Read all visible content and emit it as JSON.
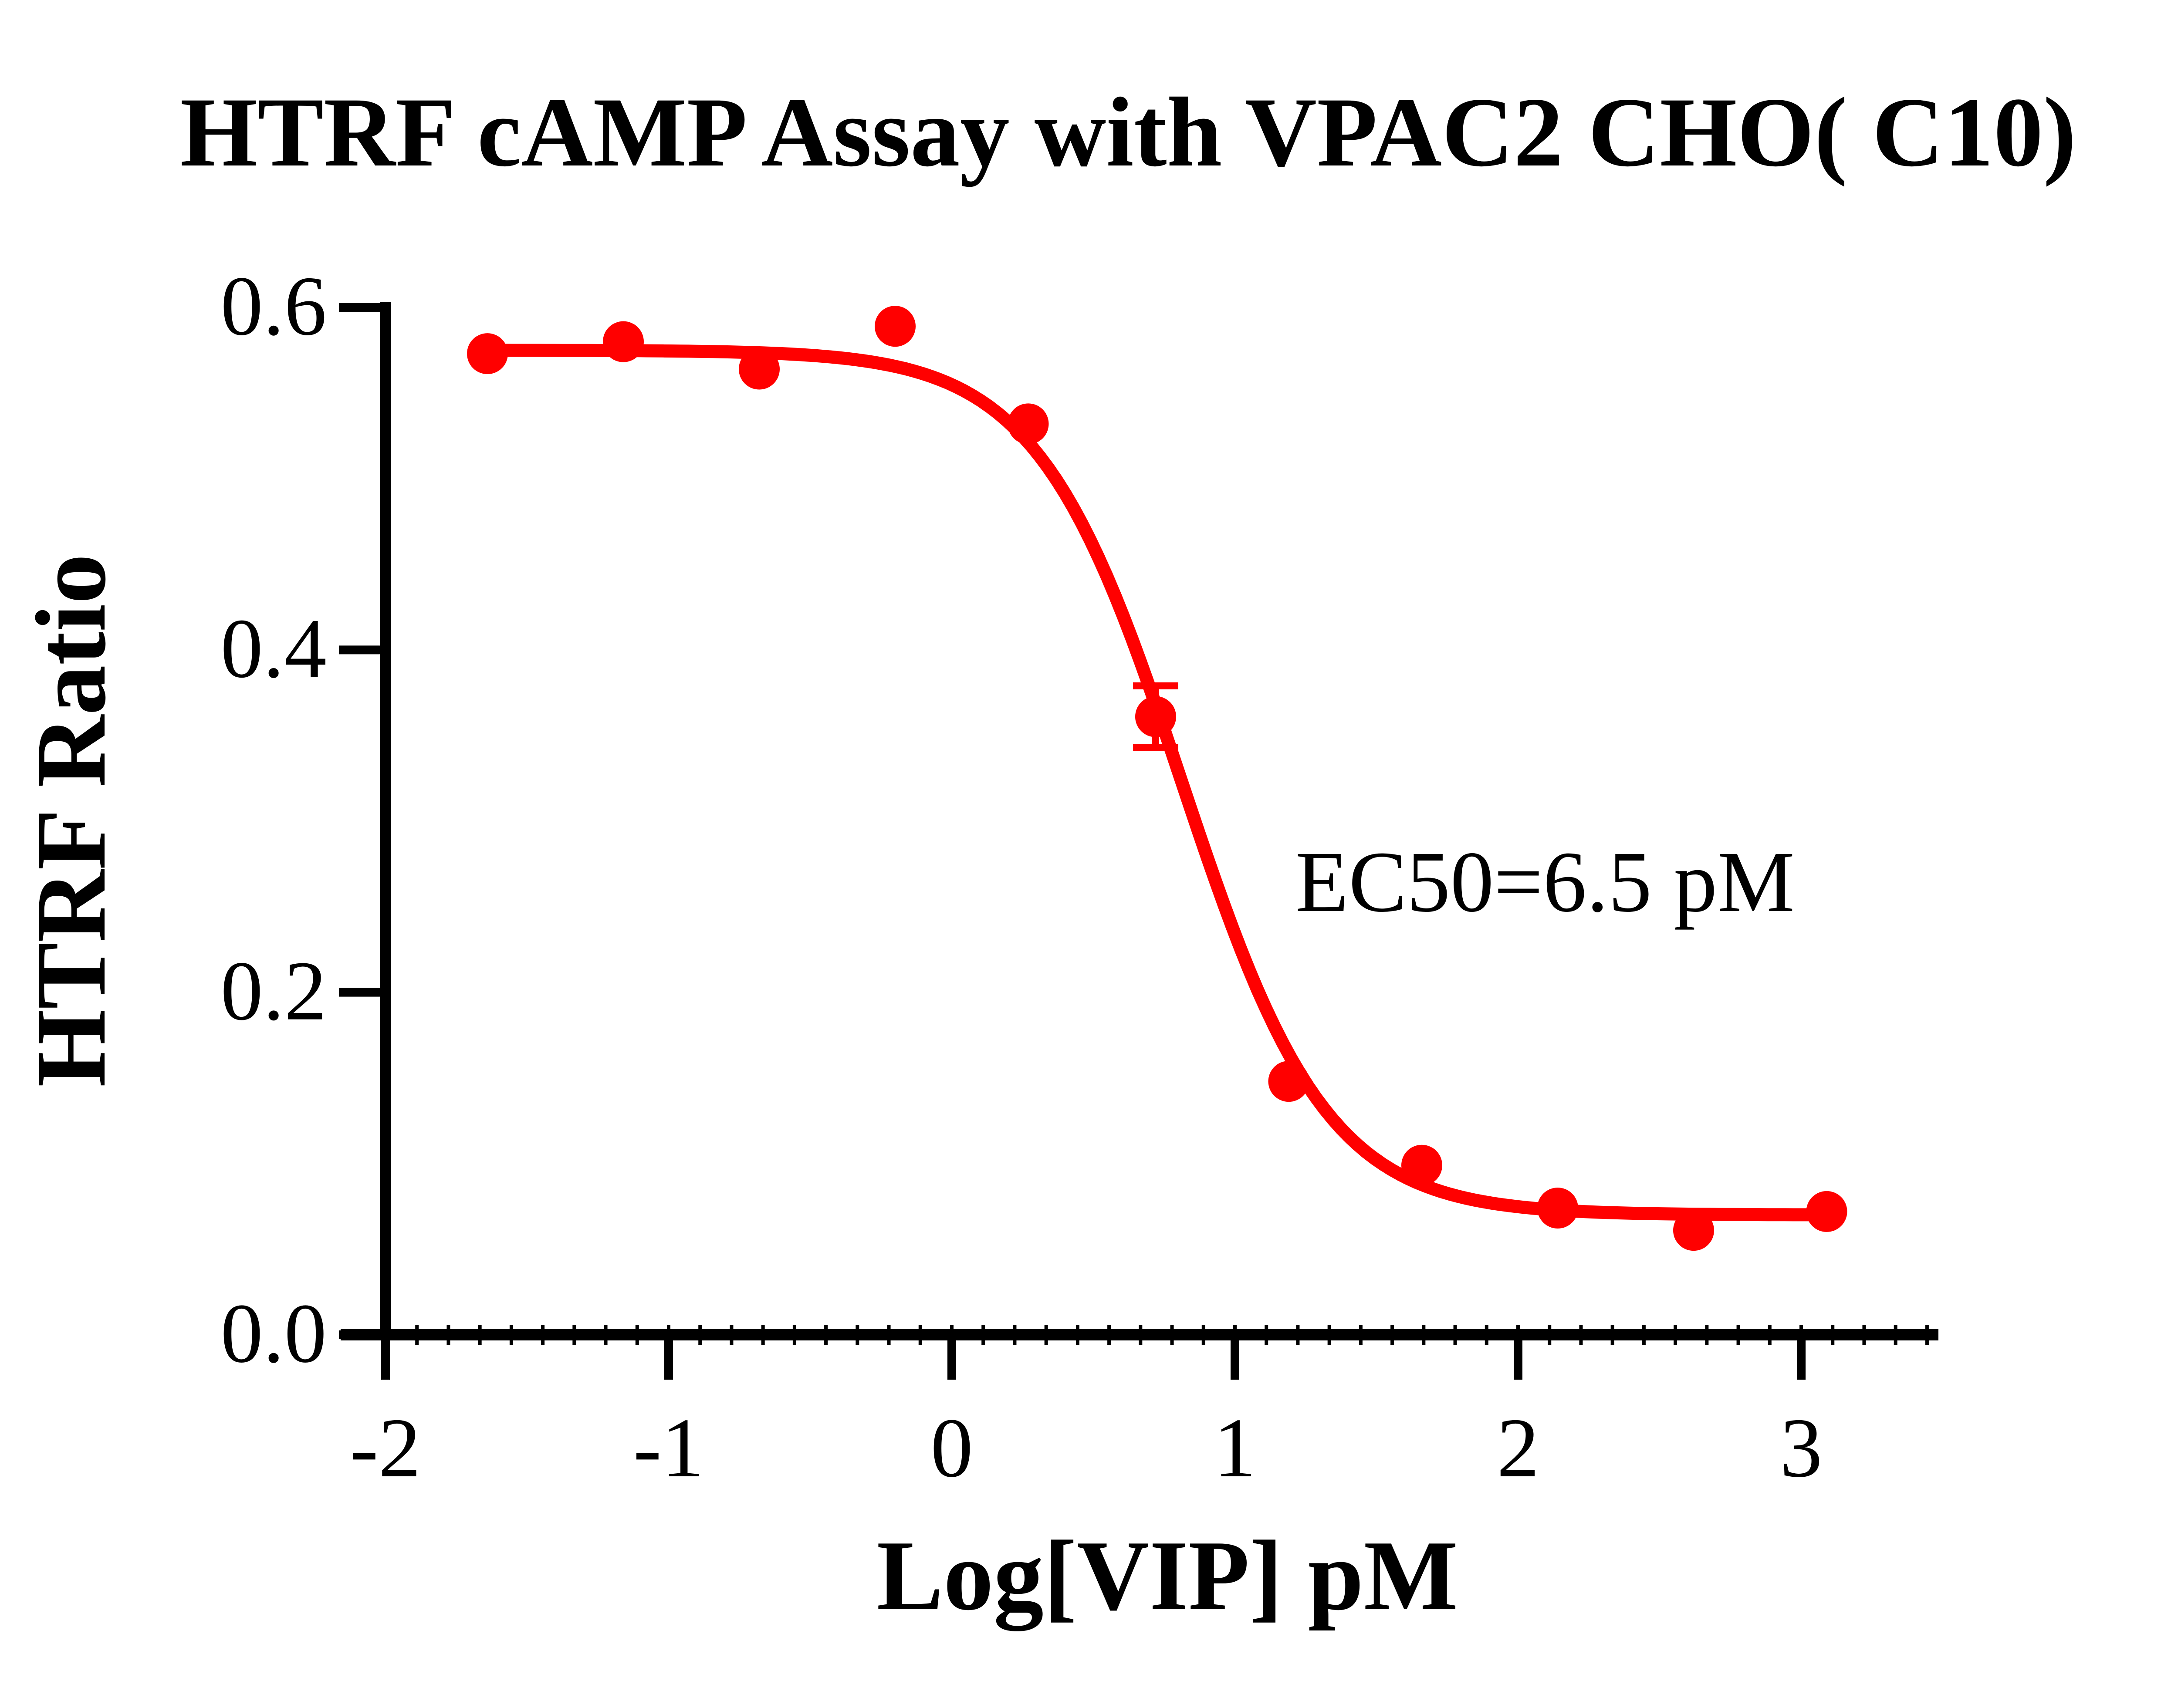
{
  "chart_data": {
    "type": "scatter",
    "title": "HTRF cAMP Assay with VPAC2 CHO( C10)",
    "xlabel": "Log[VIP] pM",
    "ylabel": "HTRF Ratio",
    "annotation": "EC50=6.5 pM",
    "grid": false,
    "legend": false,
    "x_axis": {
      "label": "Log[VIP] pM",
      "ticks": [
        -2,
        -1,
        0,
        1,
        2,
        3
      ],
      "range": [
        -2.16,
        3.48
      ],
      "minor_intervals_per_major": 9
    },
    "y_axis": {
      "label": "HTRF Ratio",
      "ticks": [
        0,
        0.2,
        0.4,
        0.6
      ],
      "range": [
        0,
        0.603
      ],
      "decimals": 1
    },
    "series": [
      {
        "name": "VIP",
        "color": "#FF0000",
        "marker": "circle",
        "points": [
          {
            "x": -1.64,
            "y": 0.573,
            "sem": 0
          },
          {
            "x": -1.16,
            "y": 0.58,
            "sem": 0
          },
          {
            "x": -0.68,
            "y": 0.564,
            "sem": 0
          },
          {
            "x": -0.2,
            "y": 0.589,
            "sem": 0
          },
          {
            "x": 0.27,
            "y": 0.532,
            "sem": 0
          },
          {
            "x": 0.72,
            "y": 0.361,
            "sem": 0.018
          },
          {
            "x": 1.19,
            "y": 0.148,
            "sem": 0
          },
          {
            "x": 1.66,
            "y": 0.099,
            "sem": 0
          },
          {
            "x": 2.14,
            "y": 0.074,
            "sem": 0
          },
          {
            "x": 2.62,
            "y": 0.061,
            "sem": 0
          },
          {
            "x": 3.09,
            "y": 0.072,
            "sem": 0
          }
        ]
      }
    ],
    "fit": {
      "model": "four-parameter logistic (decreasing)",
      "top": 0.575,
      "bottom": 0.07,
      "logEC50": 0.813,
      "hillslope": 1.7,
      "ec50_pM": 6.5,
      "x_start": -1.64,
      "x_end": 3.09
    }
  }
}
